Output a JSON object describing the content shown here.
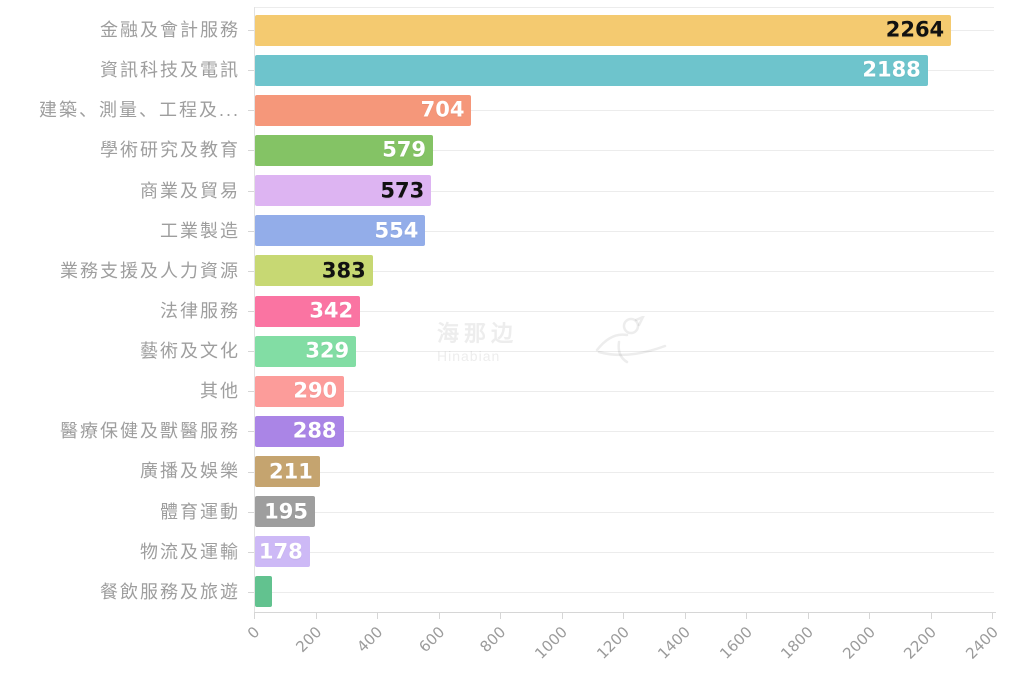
{
  "chart_data": {
    "type": "bar",
    "orientation": "horizontal",
    "title": "",
    "xlabel": "",
    "ylabel": "",
    "xlim": [
      0,
      2400
    ],
    "xticks": [
      0,
      200,
      400,
      600,
      800,
      1000,
      1200,
      1400,
      1600,
      1800,
      2000,
      2200,
      2400
    ],
    "grid": true,
    "legend": null,
    "categories": [
      "金融及會計服務",
      "資訊科技及電訊",
      "建築、測量、工程及...",
      "學術研究及教育",
      "商業及貿易",
      "工業製造",
      "業務支援及人力資源",
      "法律服務",
      "藝術及文化",
      "其他",
      "醫療保健及獸醫服務",
      "廣播及娛樂",
      "體育運動",
      "物流及運輸",
      "餐飲服務及旅遊"
    ],
    "values": [
      2264,
      2188,
      704,
      579,
      573,
      554,
      383,
      342,
      329,
      290,
      288,
      211,
      195,
      178,
      55
    ],
    "value_labels": [
      "2264",
      "2188",
      "704",
      "579",
      "573",
      "554",
      "383",
      "342",
      "329",
      "290",
      "288",
      "211",
      "195",
      "178",
      ""
    ],
    "bar_colors": [
      "#F4CA70",
      "#6EC4CC",
      "#F5977A",
      "#84C365",
      "#DDB4F2",
      "#93ADE9",
      "#C7D873",
      "#FA74A2",
      "#82DDA4",
      "#FC9C9A",
      "#AA85E6",
      "#C5A46F",
      "#9E9E9E",
      "#CDB9F6",
      "#62C28F"
    ],
    "value_label_colors": [
      "#111111",
      "#ffffff",
      "#ffffff",
      "#ffffff",
      "#111111",
      "#ffffff",
      "#111111",
      "#ffffff",
      "#ffffff",
      "#ffffff",
      "#ffffff",
      "#ffffff",
      "#ffffff",
      "#ffffff",
      ""
    ],
    "category_label_color": "#9e9e9e",
    "axis_tick_label_color": "#9b9b9b",
    "gridline_color": "#ececec",
    "axis_line_color": "#d6d6d6"
  },
  "watermark": {
    "cn": "海那边",
    "en": "Hinabian"
  }
}
